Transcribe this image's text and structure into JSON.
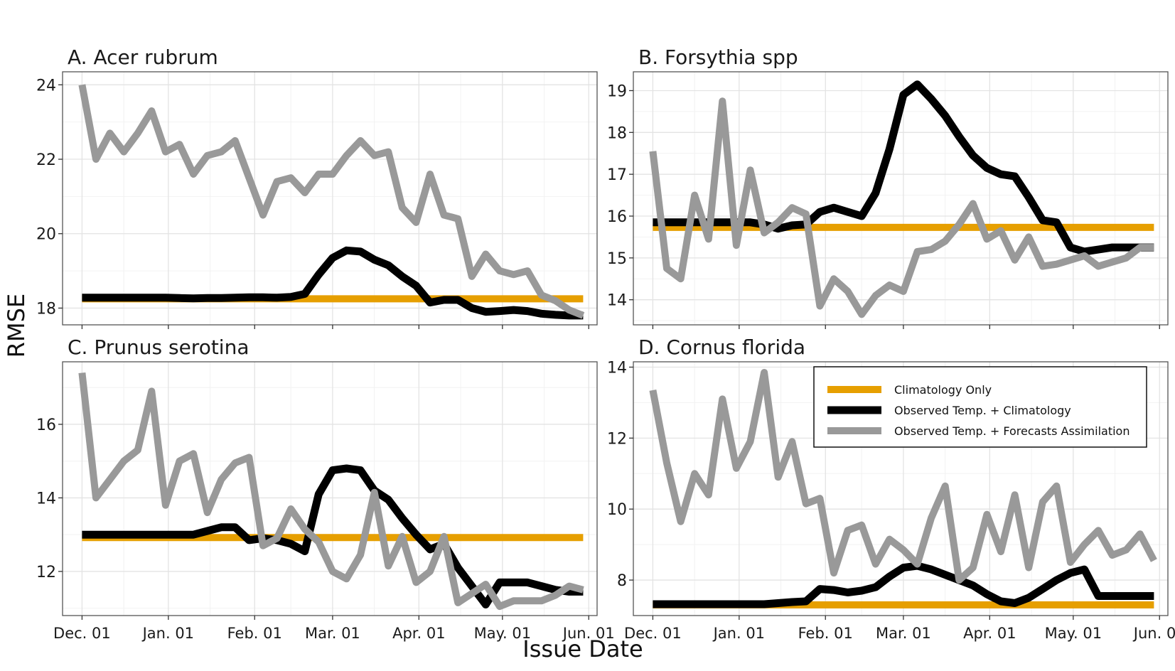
{
  "chart_data": {
    "type": "line",
    "xlabel": "Issue Date",
    "ylabel": "RMSE",
    "x_ticks": [
      "Dec. 01",
      "Jan. 01",
      "Feb. 01",
      "Mar. 01",
      "Apr. 01",
      "May. 01",
      "Jun. 01"
    ],
    "x": [
      "2020-12-01",
      "2020-12-06",
      "2020-12-11",
      "2020-12-16",
      "2020-12-21",
      "2020-12-26",
      "2020-12-31",
      "2021-01-05",
      "2021-01-10",
      "2021-01-15",
      "2021-01-20",
      "2021-01-25",
      "2021-01-30",
      "2021-02-04",
      "2021-02-09",
      "2021-02-14",
      "2021-02-19",
      "2021-02-24",
      "2021-03-01",
      "2021-03-06",
      "2021-03-11",
      "2021-03-16",
      "2021-03-21",
      "2021-03-26",
      "2021-03-31",
      "2021-04-05",
      "2021-04-10",
      "2021-04-15",
      "2021-04-20",
      "2021-04-25",
      "2021-04-30",
      "2021-05-05",
      "2021-05-10",
      "2021-05-15",
      "2021-05-20",
      "2021-05-25",
      "2021-05-30"
    ],
    "colors": {
      "Climatology Only": "#E69F00",
      "Observed Temp. + Climatology": "#000000",
      "Observed Temp. + Forecasts Assimilation": "#999999"
    },
    "legend": {
      "placement": "inside panel D, top-right",
      "entries": [
        "Climatology Only",
        "Observed Temp. + Climatology",
        "Observed Temp. + Forecasts Assimilation"
      ]
    },
    "panels": [
      {
        "title": "A. Acer rubrum",
        "ylim": [
          17.55,
          24.35
        ],
        "y_ticks": [
          18,
          20,
          22,
          24
        ],
        "series": [
          {
            "name": "Climatology Only",
            "values": [
              18.25,
              18.25,
              18.25,
              18.25,
              18.25,
              18.25,
              18.25,
              18.25,
              18.25,
              18.25,
              18.25,
              18.25,
              18.25,
              18.25,
              18.25,
              18.25,
              18.25,
              18.25,
              18.25,
              18.25,
              18.25,
              18.25,
              18.25,
              18.25,
              18.25,
              18.25,
              18.25,
              18.25,
              18.25,
              18.25,
              18.25,
              18.25,
              18.25,
              18.25,
              18.25,
              18.25,
              18.25
            ]
          },
          {
            "name": "Observed Temp. + Climatology",
            "values": [
              18.28,
              18.28,
              18.28,
              18.28,
              18.28,
              18.28,
              18.28,
              18.27,
              18.26,
              18.27,
              18.27,
              18.28,
              18.29,
              18.29,
              18.28,
              18.3,
              18.38,
              18.9,
              19.35,
              19.55,
              19.52,
              19.3,
              19.15,
              18.85,
              18.6,
              18.15,
              18.22,
              18.22,
              18.0,
              17.9,
              17.92,
              17.95,
              17.92,
              17.85,
              17.82,
              17.8,
              17.8
            ]
          },
          {
            "name": "Observed Temp. + Forecasts Assimilation",
            "values": [
              24.0,
              22.0,
              22.7,
              22.2,
              22.7,
              23.3,
              22.2,
              22.4,
              21.6,
              22.1,
              22.2,
              22.5,
              21.5,
              20.5,
              21.4,
              21.5,
              21.1,
              21.6,
              21.6,
              22.1,
              22.5,
              22.1,
              22.2,
              20.7,
              20.3,
              21.6,
              20.5,
              20.4,
              18.85,
              19.45,
              19.0,
              18.9,
              19.0,
              18.35,
              18.2,
              17.95,
              17.8
            ]
          }
        ]
      },
      {
        "title": "B. Forsythia spp",
        "ylim": [
          13.4,
          19.45
        ],
        "y_ticks": [
          14,
          15,
          16,
          17,
          18,
          19
        ],
        "series": [
          {
            "name": "Climatology Only",
            "values": [
              15.73,
              15.73,
              15.73,
              15.73,
              15.73,
              15.73,
              15.73,
              15.73,
              15.73,
              15.73,
              15.73,
              15.73,
              15.73,
              15.73,
              15.73,
              15.73,
              15.73,
              15.73,
              15.73,
              15.73,
              15.73,
              15.73,
              15.73,
              15.73,
              15.73,
              15.73,
              15.73,
              15.73,
              15.73,
              15.73,
              15.73,
              15.73,
              15.73,
              15.73,
              15.73,
              15.73,
              15.73
            ]
          },
          {
            "name": "Observed Temp. + Climatology",
            "values": [
              15.85,
              15.85,
              15.85,
              15.85,
              15.85,
              15.85,
              15.85,
              15.85,
              15.8,
              15.7,
              15.78,
              15.8,
              16.1,
              16.2,
              16.1,
              16.0,
              16.55,
              17.6,
              18.9,
              19.15,
              18.8,
              18.4,
              17.9,
              17.45,
              17.15,
              17.0,
              16.95,
              16.45,
              15.9,
              15.85,
              15.25,
              15.15,
              15.2,
              15.25,
              15.25,
              15.25,
              15.25
            ]
          },
          {
            "name": "Observed Temp. + Forecasts Assimilation",
            "values": [
              17.55,
              14.75,
              14.5,
              16.5,
              15.45,
              18.75,
              15.3,
              17.1,
              15.6,
              15.85,
              16.2,
              16.05,
              13.85,
              14.5,
              14.2,
              13.65,
              14.1,
              14.35,
              14.2,
              15.15,
              15.2,
              15.4,
              15.8,
              16.3,
              15.45,
              15.65,
              14.95,
              15.5,
              14.8,
              14.85,
              14.95,
              15.05,
              14.8,
              14.9,
              15.0,
              15.25,
              15.25
            ]
          }
        ]
      },
      {
        "title": "C. Prunus serotina",
        "ylim": [
          10.8,
          17.7
        ],
        "y_ticks": [
          12,
          14,
          16
        ],
        "series": [
          {
            "name": "Climatology Only",
            "values": [
              12.92,
              12.92,
              12.92,
              12.92,
              12.92,
              12.92,
              12.92,
              12.92,
              12.92,
              12.92,
              12.92,
              12.92,
              12.92,
              12.92,
              12.92,
              12.92,
              12.92,
              12.92,
              12.92,
              12.92,
              12.92,
              12.92,
              12.92,
              12.92,
              12.92,
              12.92,
              12.92,
              12.92,
              12.92,
              12.92,
              12.92,
              12.92,
              12.92,
              12.92,
              12.92,
              12.92,
              12.92
            ]
          },
          {
            "name": "Observed Temp. + Climatology",
            "values": [
              13.0,
              13.0,
              13.0,
              13.0,
              13.0,
              13.0,
              13.0,
              13.0,
              13.0,
              13.1,
              13.2,
              13.2,
              12.85,
              12.9,
              12.85,
              12.75,
              12.55,
              14.1,
              14.75,
              14.8,
              14.75,
              14.2,
              13.95,
              13.45,
              13.0,
              12.6,
              12.75,
              12.1,
              11.6,
              11.1,
              11.7,
              11.7,
              11.7,
              11.6,
              11.5,
              11.45,
              11.45
            ]
          },
          {
            "name": "Observed Temp. + Forecasts Assimilation",
            "values": [
              17.4,
              14.0,
              14.5,
              15.0,
              15.3,
              16.9,
              13.8,
              15.0,
              15.2,
              13.6,
              14.5,
              14.95,
              15.1,
              12.7,
              12.9,
              13.7,
              13.15,
              12.8,
              12.0,
              11.8,
              12.45,
              14.15,
              12.15,
              12.95,
              11.7,
              12.0,
              12.95,
              11.15,
              11.4,
              11.65,
              11.05,
              11.2,
              11.2,
              11.2,
              11.35,
              11.6,
              11.5
            ]
          }
        ]
      },
      {
        "title": "D. Cornus florida",
        "ylim": [
          7.0,
          14.15
        ],
        "y_ticks": [
          8,
          10,
          12,
          14
        ],
        "series": [
          {
            "name": "Climatology Only",
            "values": [
              7.3,
              7.3,
              7.3,
              7.3,
              7.3,
              7.3,
              7.3,
              7.3,
              7.3,
              7.3,
              7.3,
              7.3,
              7.3,
              7.3,
              7.3,
              7.3,
              7.3,
              7.3,
              7.3,
              7.3,
              7.3,
              7.3,
              7.3,
              7.3,
              7.3,
              7.3,
              7.3,
              7.3,
              7.3,
              7.3,
              7.3,
              7.3,
              7.3,
              7.3,
              7.3,
              7.3,
              7.3
            ]
          },
          {
            "name": "Observed Temp. + Climatology",
            "values": [
              7.32,
              7.32,
              7.32,
              7.32,
              7.32,
              7.32,
              7.32,
              7.32,
              7.32,
              7.35,
              7.38,
              7.4,
              7.75,
              7.72,
              7.65,
              7.7,
              7.8,
              8.1,
              8.35,
              8.4,
              8.3,
              8.15,
              8.0,
              7.85,
              7.6,
              7.4,
              7.35,
              7.5,
              7.75,
              8.0,
              8.2,
              8.3,
              7.55,
              7.55,
              7.55,
              7.55,
              7.55
            ]
          },
          {
            "name": "Observed Temp. + Forecasts Assimilation",
            "values": [
              13.35,
              11.3,
              9.65,
              11.0,
              10.4,
              13.1,
              11.15,
              11.9,
              13.85,
              10.9,
              11.9,
              10.15,
              10.3,
              8.2,
              9.4,
              9.55,
              8.45,
              9.15,
              8.85,
              8.45,
              9.75,
              10.65,
              8.0,
              8.35,
              9.85,
              8.8,
              10.4,
              8.35,
              10.2,
              10.65,
              8.5,
              9.0,
              9.4,
              8.7,
              8.85,
              9.3,
              8.55
            ]
          }
        ]
      }
    ]
  }
}
